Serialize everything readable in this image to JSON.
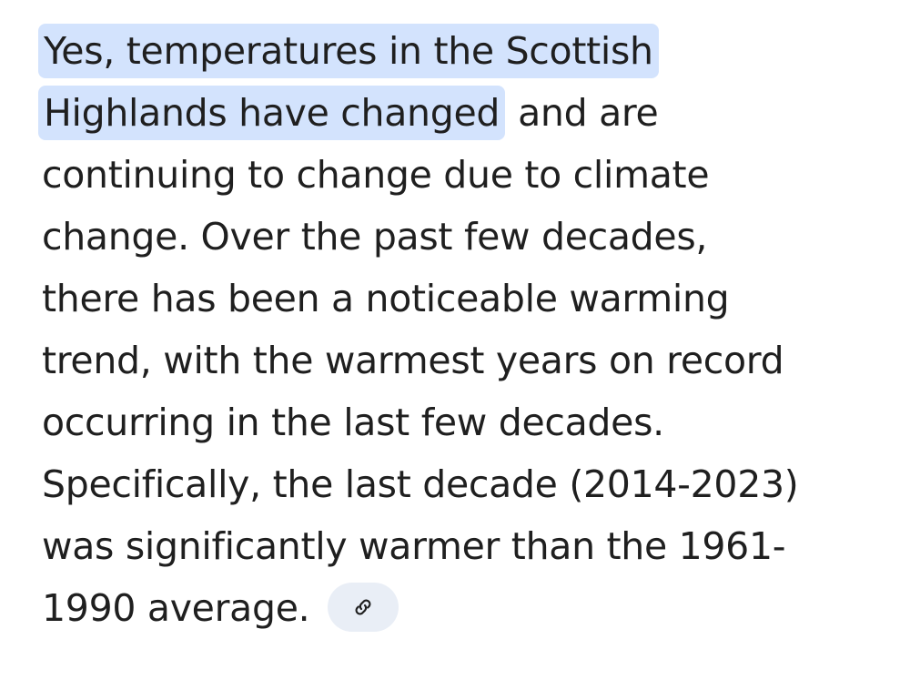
{
  "answer": {
    "lines": [
      [
        {
          "text": "Yes, temperatures in the Scottish",
          "highlight": true
        }
      ],
      [
        {
          "text": "Highlands have changed",
          "highlight": true
        },
        {
          "text": "and are",
          "highlight": false
        }
      ],
      [
        {
          "text": "continuing to change due to climate",
          "highlight": false
        }
      ],
      [
        {
          "text": "change. Over the past few decades,",
          "highlight": false
        }
      ],
      [
        {
          "text": "there has been a noticeable warming",
          "highlight": false
        }
      ],
      [
        {
          "text": "trend, with the warmest years on record",
          "highlight": false
        }
      ],
      [
        {
          "text": "occurring in the last few decades.",
          "highlight": false
        }
      ],
      [
        {
          "text": "Specifically, the last decade (2014-2023)",
          "highlight": false
        }
      ],
      [
        {
          "text": "was significantly warmer than the 1961-",
          "highlight": false
        }
      ],
      [
        {
          "text": "1990 average.",
          "highlight": false
        }
      ]
    ]
  }
}
